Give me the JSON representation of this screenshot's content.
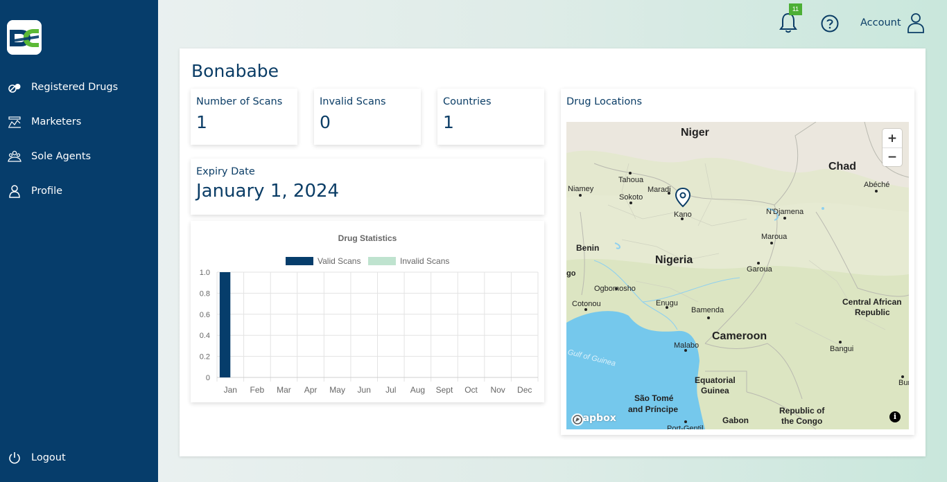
{
  "sidebar": {
    "items": [
      {
        "label": "Registered Drugs",
        "icon": "pills-icon"
      },
      {
        "label": "Marketers",
        "icon": "marketers-icon"
      },
      {
        "label": "Sole Agents",
        "icon": "agents-icon"
      },
      {
        "label": "Profile",
        "icon": "user-icon"
      }
    ],
    "logout_label": "Logout"
  },
  "header": {
    "notification_count": "11",
    "account_label": "Account"
  },
  "page": {
    "title": "Bonababe",
    "stats": {
      "scans_label": "Number of Scans",
      "scans_value": "1",
      "invalid_label": "Invalid Scans",
      "invalid_value": "0",
      "countries_label": "Countries",
      "countries_value": "1"
    },
    "expiry_label": "Expiry Date",
    "expiry_value": "January 1, 2024",
    "map_title": "Drug Locations"
  },
  "map": {
    "attribution": "mapbox",
    "zoom_in": "+",
    "zoom_out": "−",
    "info": "i",
    "labels": [
      {
        "text": "Niger",
        "kind": "country"
      },
      {
        "text": "Chad",
        "kind": "country"
      },
      {
        "text": "Nigeria",
        "kind": "country"
      },
      {
        "text": "Cameroon",
        "kind": "country"
      },
      {
        "text": "Benin",
        "kind": "country-sm"
      },
      {
        "text": "Central African",
        "kind": "country-sm"
      },
      {
        "text": "Republic",
        "kind": "country-sm"
      },
      {
        "text": "Equatorial",
        "kind": "country-sm"
      },
      {
        "text": "Guinea",
        "kind": "country-sm"
      },
      {
        "text": "São Tomé",
        "kind": "country-sm"
      },
      {
        "text": "and Príncipe",
        "kind": "country-sm"
      },
      {
        "text": "Gabon",
        "kind": "country-sm"
      },
      {
        "text": "Republic of",
        "kind": "country-sm"
      },
      {
        "text": "the Congo",
        "kind": "country-sm"
      },
      {
        "text": "Tahoua",
        "kind": "city"
      },
      {
        "text": "Niamey",
        "kind": "city"
      },
      {
        "text": "Maradi",
        "kind": "city"
      },
      {
        "text": "Sokoto",
        "kind": "city"
      },
      {
        "text": "Kano",
        "kind": "city"
      },
      {
        "text": "Abéché",
        "kind": "city"
      },
      {
        "text": "N'Djamena",
        "kind": "city"
      },
      {
        "text": "Maroua",
        "kind": "city"
      },
      {
        "text": "Garoua",
        "kind": "city"
      },
      {
        "text": "Ogbomosho",
        "kind": "city"
      },
      {
        "text": "Cotonou",
        "kind": "city"
      },
      {
        "text": "Enugu",
        "kind": "city"
      },
      {
        "text": "Bamenda",
        "kind": "city"
      },
      {
        "text": "Malabo",
        "kind": "city"
      },
      {
        "text": "Bangui",
        "kind": "city"
      },
      {
        "text": "Bumb",
        "kind": "city"
      },
      {
        "text": "Port-Gentil",
        "kind": "city"
      },
      {
        "text": "Gulf of Guinea",
        "kind": "water"
      },
      {
        "text": "go",
        "kind": "country-sm"
      }
    ]
  },
  "chart_data": {
    "type": "bar",
    "title": "Drug Statistics",
    "categories": [
      "Jan",
      "Feb",
      "Mar",
      "Apr",
      "May",
      "Jun",
      "Jul",
      "Aug",
      "Sept",
      "Oct",
      "Nov",
      "Dec"
    ],
    "series": [
      {
        "name": "Valid Scans",
        "color": "#063d6b",
        "values": [
          1,
          0,
          0,
          0,
          0,
          0,
          0,
          0,
          0,
          0,
          0,
          0
        ]
      },
      {
        "name": "Invalid Scans",
        "color": "#bfe3cf",
        "values": [
          0,
          0,
          0,
          0,
          0,
          0,
          0,
          0,
          0,
          0,
          0,
          0
        ]
      }
    ],
    "yticks": [
      "0",
      "0.2",
      "0.4",
      "0.6",
      "0.8",
      "1.0"
    ],
    "ylim": [
      0,
      1
    ],
    "legend": "top",
    "grid": true
  }
}
